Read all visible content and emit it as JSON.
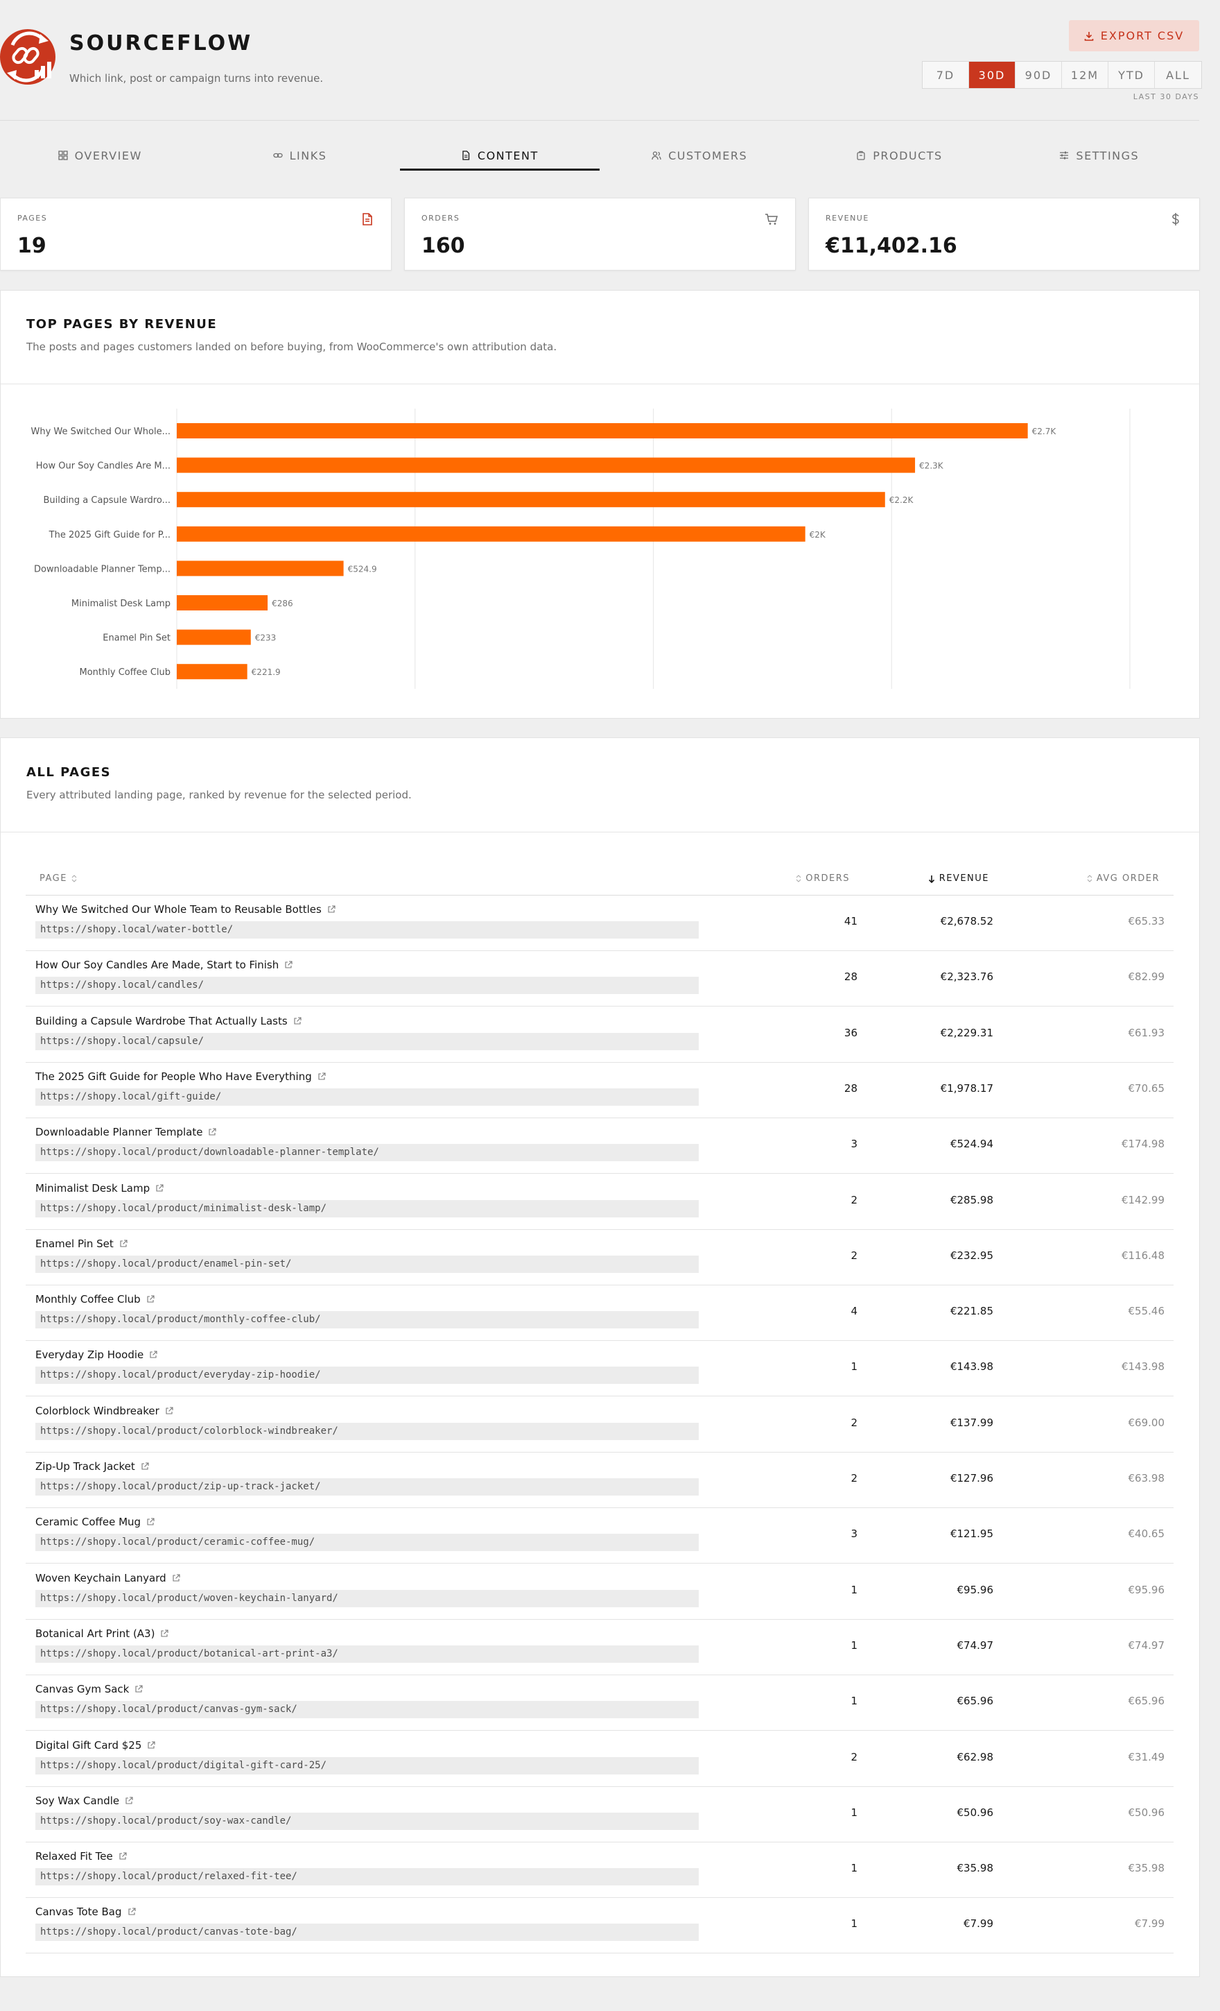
{
  "brand": {
    "name": "SOURCEFLOW",
    "tagline": "Which link, post or campaign turns into revenue."
  },
  "header": {
    "export_label": "EXPORT CSV",
    "ranges": [
      "7D",
      "30D",
      "90D",
      "12M",
      "YTD",
      "ALL"
    ],
    "active_range": "30D",
    "range_caption": "LAST 30 DAYS"
  },
  "tabs": [
    {
      "label": "OVERVIEW",
      "icon": "grid-icon"
    },
    {
      "label": "LINKS",
      "icon": "link-icon"
    },
    {
      "label": "CONTENT",
      "icon": "document-icon",
      "active": true
    },
    {
      "label": "CUSTOMERS",
      "icon": "users-icon"
    },
    {
      "label": "PRODUCTS",
      "icon": "package-icon"
    },
    {
      "label": "SETTINGS",
      "icon": "sliders-icon"
    }
  ],
  "kpis": [
    {
      "label": "PAGES",
      "value": "19",
      "icon": "document-icon",
      "color": "#c9371e"
    },
    {
      "label": "ORDERS",
      "value": "160",
      "icon": "cart-icon",
      "color": "#6d6d6d"
    },
    {
      "label": "REVENUE",
      "value": "€11,402.16",
      "icon": "dollar-icon",
      "color": "#6d6d6d"
    }
  ],
  "chart_panel": {
    "title": "TOP PAGES BY REVENUE",
    "description": "The posts and pages customers landed on before buying, from WooCommerce's own attribution data."
  },
  "chart_data": {
    "type": "bar",
    "orientation": "horizontal",
    "categories": [
      "Why We Switched Our Whole...",
      "How Our Soy Candles Are M...",
      "Building a Capsule Wardro...",
      "The 2025 Gift Guide for P...",
      "Downloadable Planner Temp...",
      "Minimalist Desk Lamp",
      "Enamel Pin Set",
      "Monthly Coffee Club"
    ],
    "values": [
      2678.52,
      2323.76,
      2229.31,
      1978.17,
      524.94,
      285.98,
      232.95,
      221.85
    ],
    "data_labels": [
      "€2.7K",
      "€2.3K",
      "€2.2K",
      "€2K",
      "€524.9",
      "€286",
      "€233",
      "€221.9"
    ],
    "xlim": [
      0,
      3000
    ],
    "grid": true,
    "bar_color": "#ff6a00"
  },
  "table_panel": {
    "title": "ALL PAGES",
    "description": "Every attributed landing page, ranked by revenue for the selected period.",
    "columns": {
      "page": "PAGE",
      "orders": "ORDERS",
      "revenue": "REVENUE",
      "avg": "AVG ORDER"
    }
  },
  "rows": [
    {
      "title": "Why We Switched Our Whole Team to Reusable Bottles",
      "url": "https://shopy.local/water-bottle/",
      "orders": "41",
      "revenue": "€2,678.52",
      "avg": "€65.33"
    },
    {
      "title": "How Our Soy Candles Are Made, Start to Finish",
      "url": "https://shopy.local/candles/",
      "orders": "28",
      "revenue": "€2,323.76",
      "avg": "€82.99"
    },
    {
      "title": "Building a Capsule Wardrobe That Actually Lasts",
      "url": "https://shopy.local/capsule/",
      "orders": "36",
      "revenue": "€2,229.31",
      "avg": "€61.93"
    },
    {
      "title": "The 2025 Gift Guide for People Who Have Everything",
      "url": "https://shopy.local/gift-guide/",
      "orders": "28",
      "revenue": "€1,978.17",
      "avg": "€70.65"
    },
    {
      "title": "Downloadable Planner Template",
      "url": "https://shopy.local/product/downloadable-planner-template/",
      "orders": "3",
      "revenue": "€524.94",
      "avg": "€174.98"
    },
    {
      "title": "Minimalist Desk Lamp",
      "url": "https://shopy.local/product/minimalist-desk-lamp/",
      "orders": "2",
      "revenue": "€285.98",
      "avg": "€142.99"
    },
    {
      "title": "Enamel Pin Set",
      "url": "https://shopy.local/product/enamel-pin-set/",
      "orders": "2",
      "revenue": "€232.95",
      "avg": "€116.48"
    },
    {
      "title": "Monthly Coffee Club",
      "url": "https://shopy.local/product/monthly-coffee-club/",
      "orders": "4",
      "revenue": "€221.85",
      "avg": "€55.46"
    },
    {
      "title": "Everyday Zip Hoodie",
      "url": "https://shopy.local/product/everyday-zip-hoodie/",
      "orders": "1",
      "revenue": "€143.98",
      "avg": "€143.98"
    },
    {
      "title": "Colorblock Windbreaker",
      "url": "https://shopy.local/product/colorblock-windbreaker/",
      "orders": "2",
      "revenue": "€137.99",
      "avg": "€69.00"
    },
    {
      "title": "Zip-Up Track Jacket",
      "url": "https://shopy.local/product/zip-up-track-jacket/",
      "orders": "2",
      "revenue": "€127.96",
      "avg": "€63.98"
    },
    {
      "title": "Ceramic Coffee Mug",
      "url": "https://shopy.local/product/ceramic-coffee-mug/",
      "orders": "3",
      "revenue": "€121.95",
      "avg": "€40.65"
    },
    {
      "title": "Woven Keychain Lanyard",
      "url": "https://shopy.local/product/woven-keychain-lanyard/",
      "orders": "1",
      "revenue": "€95.96",
      "avg": "€95.96"
    },
    {
      "title": "Botanical Art Print (A3)",
      "url": "https://shopy.local/product/botanical-art-print-a3/",
      "orders": "1",
      "revenue": "€74.97",
      "avg": "€74.97"
    },
    {
      "title": "Canvas Gym Sack",
      "url": "https://shopy.local/product/canvas-gym-sack/",
      "orders": "1",
      "revenue": "€65.96",
      "avg": "€65.96"
    },
    {
      "title": "Digital Gift Card $25",
      "url": "https://shopy.local/product/digital-gift-card-25/",
      "orders": "2",
      "revenue": "€62.98",
      "avg": "€31.49"
    },
    {
      "title": "Soy Wax Candle",
      "url": "https://shopy.local/product/soy-wax-candle/",
      "orders": "1",
      "revenue": "€50.96",
      "avg": "€50.96"
    },
    {
      "title": "Relaxed Fit Tee",
      "url": "https://shopy.local/product/relaxed-fit-tee/",
      "orders": "1",
      "revenue": "€35.98",
      "avg": "€35.98"
    },
    {
      "title": "Canvas Tote Bag",
      "url": "https://shopy.local/product/canvas-tote-bag/",
      "orders": "1",
      "revenue": "€7.99",
      "avg": "€7.99"
    }
  ],
  "colors": {
    "accent": "#c9371e",
    "bar": "#ff6a00",
    "background": "#efefef"
  }
}
